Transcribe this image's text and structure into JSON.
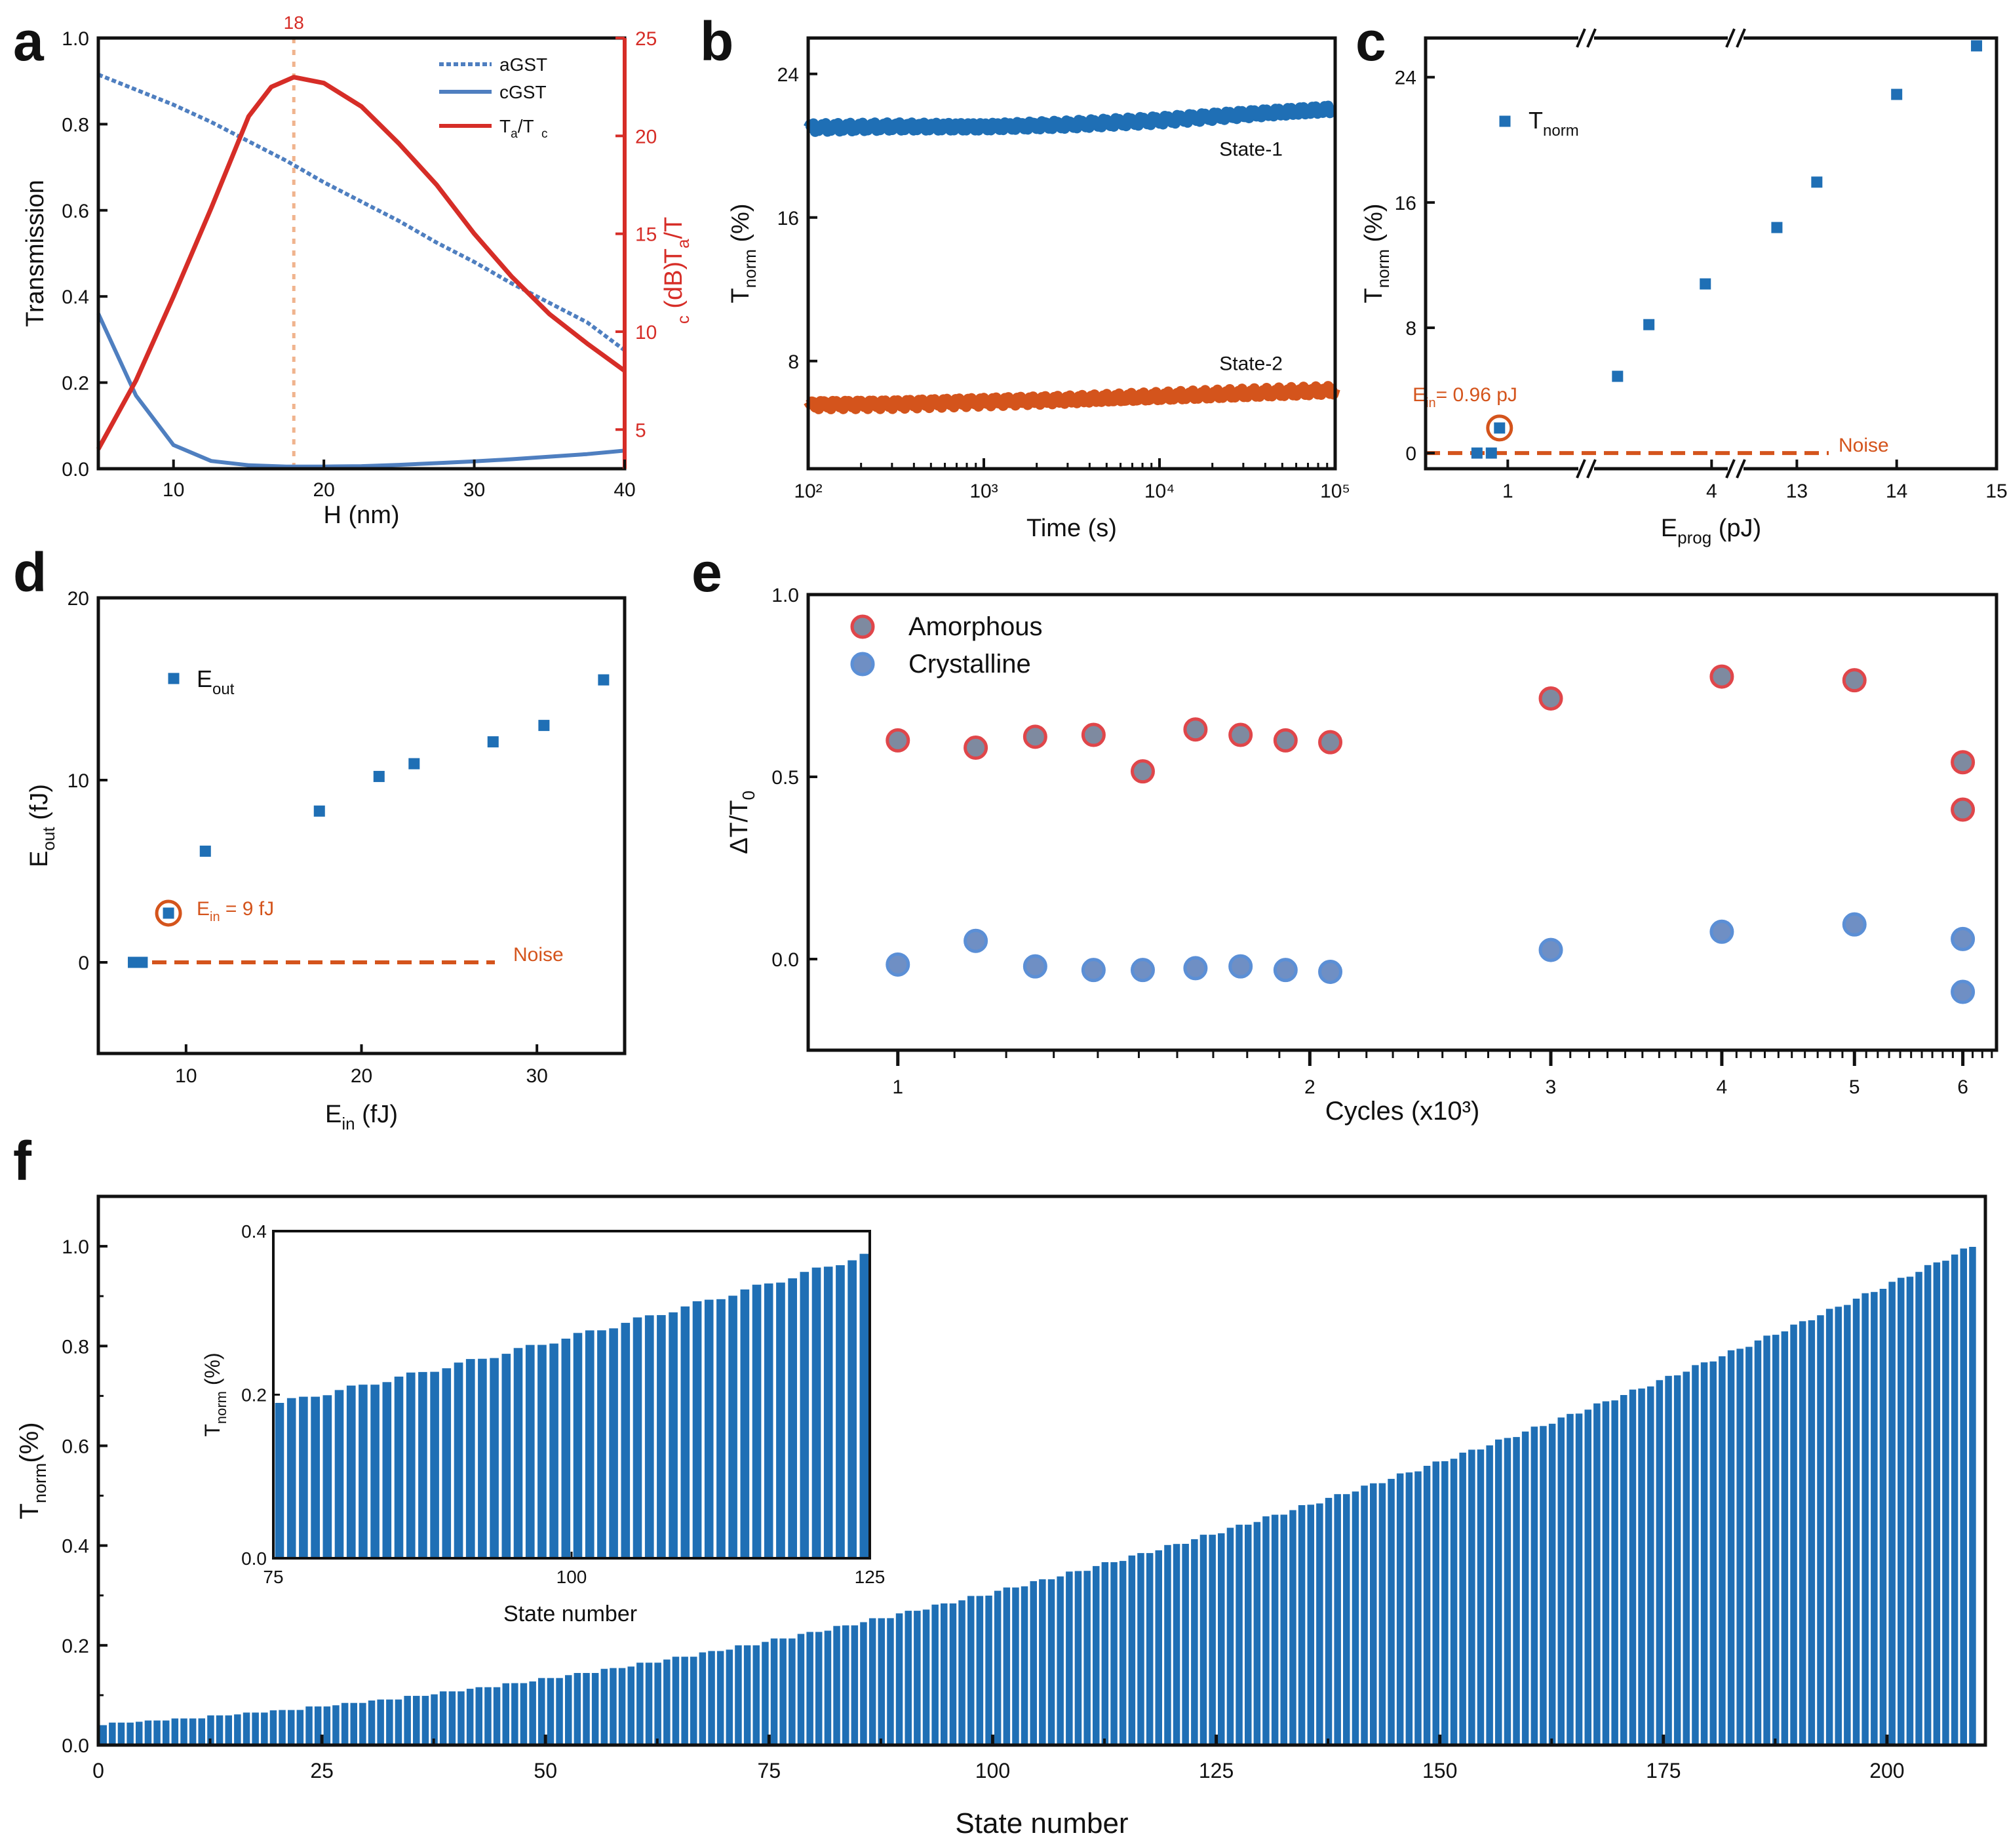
{
  "colors": {
    "blue": "#1f6fb5",
    "blue_line": "#4f7fc0",
    "red": "#d62d27",
    "orange": "#d4541c",
    "peach": "#f0b48e",
    "amorphous_fill": "#7e8aa0",
    "amorphous_edge": "#e0464a",
    "crystalline_fill": "#6f8fc4",
    "crystalline_edge": "#5b8fd6"
  },
  "chart_data": [
    {
      "panel": "a",
      "panel_label": "a",
      "type": "line",
      "xlabel": "H (nm)",
      "ylabel": "Transmission",
      "y2label": "Ta/Tc (dB)",
      "xlim": [
        5,
        40
      ],
      "ylim": [
        0,
        1.0
      ],
      "y2lim": [
        3,
        25
      ],
      "xticks": [
        10,
        20,
        30,
        40
      ],
      "yticks": [
        0.0,
        0.2,
        0.4,
        0.6,
        0.8,
        1.0
      ],
      "y2ticks": [
        5,
        10,
        15,
        20,
        25
      ],
      "marker_line": {
        "x": 18,
        "label": "18"
      },
      "legend": [
        "aGST",
        "cGST",
        "Ta/Tc"
      ],
      "series": [
        {
          "name": "aGST",
          "axis": "left",
          "x": [
            5,
            7.5,
            10,
            12.5,
            15,
            17.5,
            20,
            22.5,
            25,
            27.5,
            30,
            32.5,
            35,
            37.5,
            40
          ],
          "values": [
            0.915,
            0.88,
            0.845,
            0.805,
            0.76,
            0.715,
            0.665,
            0.62,
            0.575,
            0.525,
            0.48,
            0.43,
            0.385,
            0.34,
            0.275
          ]
        },
        {
          "name": "cGST",
          "axis": "left",
          "x": [
            5,
            7.5,
            10,
            12.5,
            15,
            17.5,
            20,
            22.5,
            25,
            27.5,
            30,
            32.5,
            35,
            37.5,
            40
          ],
          "values": [
            0.36,
            0.17,
            0.055,
            0.018,
            0.008,
            0.005,
            0.005,
            0.006,
            0.009,
            0.013,
            0.017,
            0.022,
            0.028,
            0.034,
            0.042
          ]
        },
        {
          "name": "Ta/Tc",
          "axis": "right",
          "x": [
            5,
            7.5,
            10,
            12.5,
            15,
            16.5,
            18,
            20,
            22.5,
            25,
            27.5,
            30,
            32.5,
            35,
            37.5,
            40
          ],
          "values": [
            4.0,
            7.5,
            11.8,
            16.3,
            21.0,
            22.5,
            23.0,
            22.7,
            21.5,
            19.6,
            17.5,
            15.0,
            12.8,
            10.9,
            9.4,
            8.0
          ]
        }
      ]
    },
    {
      "panel": "b",
      "panel_label": "b",
      "type": "line",
      "xlabel": "Time (s)",
      "ylabel": "Tnorm (%)",
      "xscale": "log",
      "xlim": [
        100,
        100000
      ],
      "ylim": [
        2,
        26
      ],
      "yticks": [
        8,
        16,
        24
      ],
      "xtick_labels": [
        "10²",
        "10³",
        "10⁴",
        "10⁵"
      ],
      "series": [
        {
          "name": "State-1",
          "label": "State-1",
          "x": [
            100,
            300,
            1000,
            3000,
            10000,
            30000,
            100000
          ],
          "values": [
            21.0,
            21.1,
            21.1,
            21.2,
            21.4,
            21.7,
            22.0
          ]
        },
        {
          "name": "State-2",
          "label": "State-2",
          "x": [
            100,
            300,
            1000,
            3000,
            10000,
            30000,
            100000
          ],
          "values": [
            5.6,
            5.6,
            5.7,
            5.8,
            6.0,
            6.2,
            6.4
          ]
        }
      ]
    },
    {
      "panel": "c",
      "panel_label": "c",
      "type": "scatter",
      "xlabel": "Eprog (pJ)",
      "ylabel": "Tnorm (%)",
      "ylim": [
        -1,
        26.5
      ],
      "yticks": [
        0,
        8,
        16,
        24
      ],
      "xtick_labels": [
        "1",
        "4",
        "13",
        "14",
        "15"
      ],
      "legend": [
        "Tnorm"
      ],
      "annotation": "Ein= 0.96 pJ",
      "noise_label": "Noise",
      "points": [
        {
          "x": 0.85,
          "y": 0.0
        },
        {
          "x": 0.92,
          "y": 0.0
        },
        {
          "x": 0.96,
          "y": 1.6
        },
        {
          "x": 2.5,
          "y": 4.9
        },
        {
          "x": 3.0,
          "y": 8.2
        },
        {
          "x": 3.9,
          "y": 10.8
        },
        {
          "x": 12.8,
          "y": 14.4
        },
        {
          "x": 13.2,
          "y": 17.3
        },
        {
          "x": 14.0,
          "y": 22.9
        },
        {
          "x": 14.8,
          "y": 26.0
        }
      ]
    },
    {
      "panel": "d",
      "panel_label": "d",
      "type": "scatter",
      "xlabel": "Ein (fJ)",
      "ylabel": "Eout (fJ)",
      "xlim": [
        5,
        35
      ],
      "ylim": [
        -5,
        20
      ],
      "xticks": [
        10,
        20,
        30
      ],
      "yticks": [
        0,
        10,
        20
      ],
      "legend": [
        "Eout"
      ],
      "annotation": "Ein = 9 fJ",
      "noise_label": "Noise",
      "points": [
        {
          "x": 7.0,
          "y": 0.0
        },
        {
          "x": 7.5,
          "y": 0.0
        },
        {
          "x": 9.0,
          "y": 2.7
        },
        {
          "x": 11.1,
          "y": 6.1
        },
        {
          "x": 17.6,
          "y": 8.3
        },
        {
          "x": 21.0,
          "y": 10.2
        },
        {
          "x": 23.0,
          "y": 10.9
        },
        {
          "x": 27.5,
          "y": 12.1
        },
        {
          "x": 30.4,
          "y": 13.0
        },
        {
          "x": 33.8,
          "y": 15.5
        }
      ]
    },
    {
      "panel": "e",
      "panel_label": "e",
      "type": "scatter",
      "xlabel": "Cycles (x10³)",
      "ylabel": "ΔT/T0",
      "xscale": "log",
      "xlim": [
        0.86,
        6.35
      ],
      "ylim": [
        -0.25,
        1.0
      ],
      "xticks": [
        1,
        2,
        3,
        4,
        5,
        6
      ],
      "yticks": [
        0.0,
        0.5,
        1.0
      ],
      "series": [
        {
          "name": "Amorphous",
          "x": [
            1,
            1.14,
            1.26,
            1.39,
            1.51,
            1.65,
            1.78,
            1.92,
            2.07,
            3,
            4,
            5,
            6,
            6
          ],
          "values": [
            0.6,
            0.58,
            0.61,
            0.615,
            0.515,
            0.63,
            0.615,
            0.6,
            0.595,
            0.715,
            0.775,
            0.765,
            0.54,
            0.41
          ]
        },
        {
          "name": "Crystalline",
          "x": [
            1,
            1.14,
            1.26,
            1.39,
            1.51,
            1.65,
            1.78,
            1.92,
            2.07,
            3,
            4,
            5,
            6,
            6
          ],
          "values": [
            -0.015,
            0.05,
            -0.02,
            -0.03,
            -0.03,
            -0.025,
            -0.02,
            -0.03,
            -0.035,
            0.025,
            0.075,
            0.095,
            -0.09,
            0.055
          ]
        }
      ]
    },
    {
      "panel": "f",
      "panel_label": "f",
      "type": "bar",
      "xlabel": "State number",
      "ylabel": "Tnorm(%)",
      "xlim": [
        0,
        211
      ],
      "ylim": [
        0,
        1.1
      ],
      "xticks": [
        0,
        25,
        50,
        75,
        100,
        125,
        150,
        175,
        200
      ],
      "yticks": [
        0.0,
        0.2,
        0.4,
        0.6,
        0.8,
        1.0
      ],
      "bar_count": 210,
      "value_range": [
        0.04,
        1.0
      ],
      "inset": {
        "xlabel": "State number",
        "ylabel": "Tnorm (%)",
        "xlim": [
          75,
          125
        ],
        "ylim": [
          0.0,
          0.4
        ],
        "xticks": [
          75,
          100,
          125
        ],
        "yticks": [
          0.0,
          0.2,
          0.4
        ],
        "value_range": [
          0.19,
          0.37
        ]
      }
    }
  ]
}
